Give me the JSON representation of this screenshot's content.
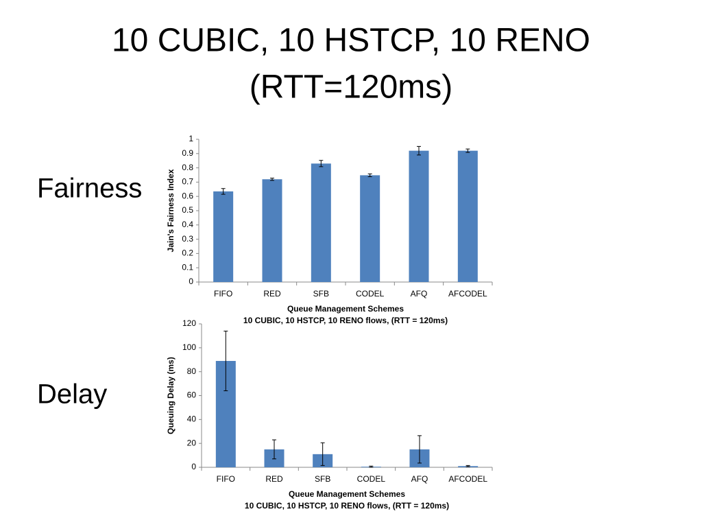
{
  "slide": {
    "title_lines": [
      "10 CUBIC, 10 HSTCP, 10 RENO",
      "(RTT=120ms)"
    ],
    "labels": [
      "Fairness",
      "Delay"
    ]
  },
  "chart_data": [
    {
      "type": "bar",
      "ylabel": "Jain's Fairness Index",
      "xlabel": "Queue Management Schemes",
      "subtitle": "10 CUBIC, 10 HSTCP, 10 RENO flows, (RTT = 120ms)",
      "categories": [
        "FIFO",
        "RED",
        "SFB",
        "CODEL",
        "AFQ",
        "AFCODEL"
      ],
      "values": [
        0.635,
        0.72,
        0.83,
        0.748,
        0.92,
        0.92
      ],
      "errors": [
        0.02,
        0.008,
        0.022,
        0.01,
        0.03,
        0.012
      ],
      "color": "#4f81bd",
      "ylim": [
        0,
        1
      ],
      "yticks": [
        0,
        0.1,
        0.2,
        0.3,
        0.4,
        0.5,
        0.6,
        0.7,
        0.8,
        0.9,
        1
      ],
      "grid": false
    },
    {
      "type": "bar",
      "ylabel": "Queuing Delay (ms)",
      "xlabel": "Queue Management Schemes",
      "subtitle": "10 CUBIC, 10 HSTCP, 10 RENO flows, (RTT = 120ms)",
      "categories": [
        "FIFO",
        "RED",
        "SFB",
        "CODEL",
        "AFQ",
        "AFCODEL"
      ],
      "values": [
        89,
        15,
        11,
        0.5,
        15,
        1
      ],
      "errors": [
        25,
        8,
        9.5,
        0.5,
        11.5,
        0.5
      ],
      "color": "#4f81bd",
      "ylim": [
        0,
        120
      ],
      "yticks": [
        0,
        20,
        40,
        60,
        80,
        100,
        120
      ],
      "grid": false
    }
  ]
}
